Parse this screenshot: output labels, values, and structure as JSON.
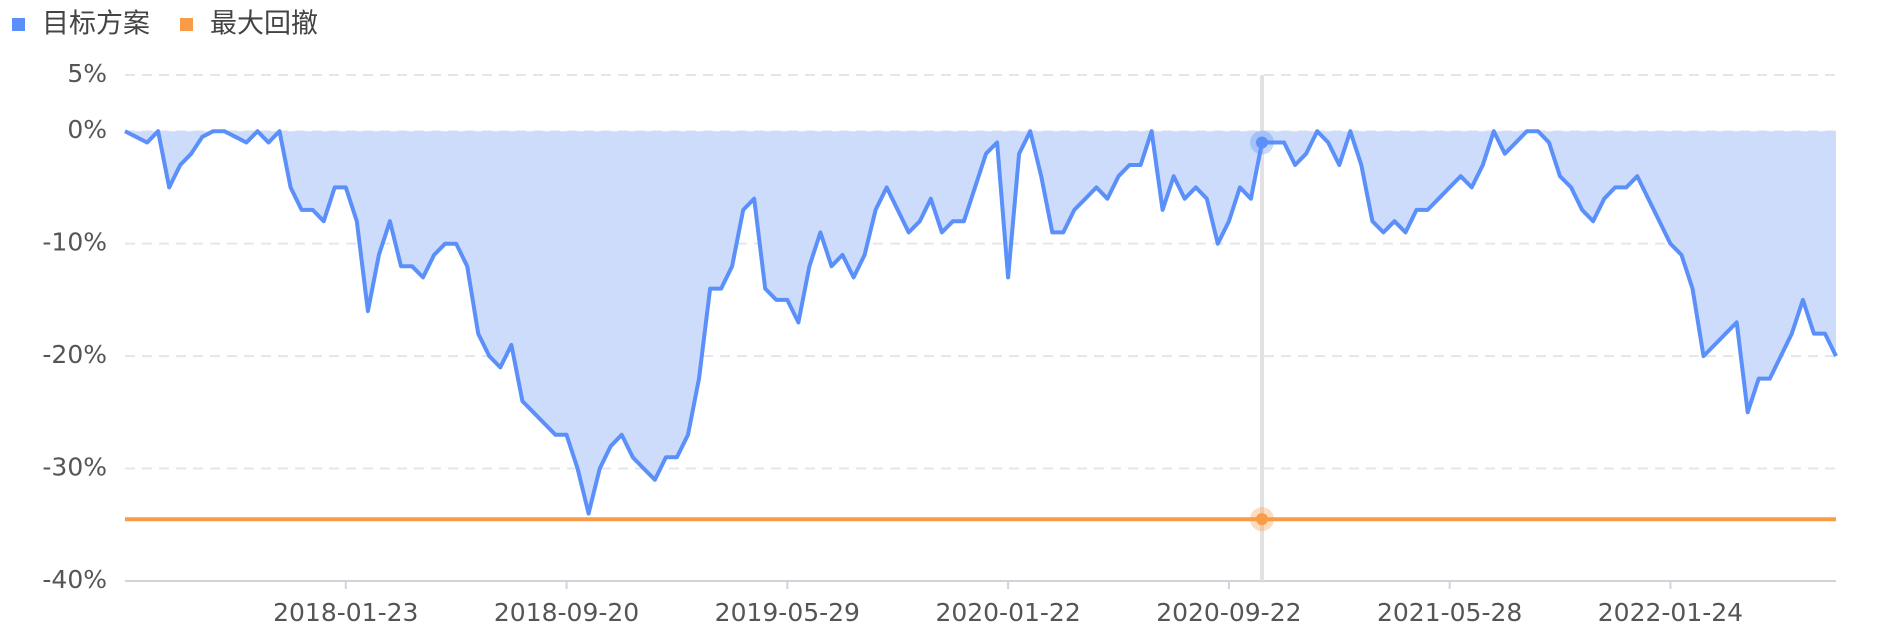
{
  "chart_data": {
    "type": "line",
    "categories": [
      null,
      null,
      null,
      null,
      null,
      null,
      null,
      null,
      null,
      null,
      null,
      null,
      null,
      null,
      null,
      null,
      null,
      null,
      null,
      null,
      "2018-01-23",
      null,
      null,
      null,
      null,
      null,
      null,
      null,
      null,
      null,
      null,
      null,
      null,
      null,
      null,
      null,
      null,
      null,
      null,
      null,
      "2018-09-20",
      null,
      null,
      null,
      null,
      null,
      null,
      null,
      null,
      null,
      null,
      null,
      null,
      null,
      null,
      null,
      null,
      null,
      null,
      null,
      "2019-05-29",
      null,
      null,
      null,
      null,
      null,
      null,
      null,
      null,
      null,
      null,
      null,
      null,
      null,
      null,
      null,
      null,
      null,
      null,
      null,
      "2020-01-22",
      null,
      null,
      null,
      null,
      null,
      null,
      null,
      null,
      null,
      null,
      null,
      null,
      null,
      null,
      null,
      null,
      null,
      null,
      null,
      "2020-09-22",
      null,
      null,
      null,
      null,
      null,
      null,
      null,
      null,
      null,
      null,
      null,
      null,
      null,
      null,
      null,
      null,
      null,
      null,
      null,
      "2021-05-28",
      null,
      null,
      null,
      null,
      null,
      null,
      null,
      null,
      null,
      null,
      null,
      null,
      null,
      null,
      null,
      null,
      null,
      null,
      null,
      "2022-01-24",
      null,
      null,
      null,
      null,
      null,
      null,
      null,
      null,
      null,
      null,
      null,
      null,
      null,
      null,
      null
    ],
    "series": [
      {
        "name": "目标方案",
        "color": "#5b8ff9",
        "area_color": "#cddcfb",
        "values": [
          0,
          -0.5,
          -1,
          0,
          -5,
          -3,
          -2,
          -0.5,
          0,
          0,
          -0.5,
          -1,
          0,
          -1,
          0,
          -5,
          -7,
          -7,
          -8,
          -5,
          -5,
          -8,
          -16,
          -11,
          -8,
          -12,
          -12,
          -13,
          -11,
          -10,
          -10,
          -12,
          -18,
          -20,
          -21,
          -19,
          -24,
          -25,
          -26,
          -27,
          -27,
          -30,
          -34,
          -30,
          -28,
          -27,
          -29,
          -30,
          -31,
          -29,
          -29,
          -27,
          -22,
          -14,
          -14,
          -12,
          -7,
          -6,
          -14,
          -15,
          -15,
          -17,
          -12,
          -9,
          -12,
          -11,
          -13,
          -11,
          -7,
          -5,
          -7,
          -9,
          -8,
          -6,
          -9,
          -8,
          -8,
          -5,
          -2,
          -1,
          -13,
          -2,
          0,
          -4,
          -9,
          -9,
          -7,
          -6,
          -5,
          -6,
          -4,
          -3,
          -3,
          0,
          -7,
          -4,
          -6,
          -5,
          -6,
          -10,
          -8,
          -5,
          -6,
          -1,
          -1,
          -1,
          -3,
          -2,
          0,
          -1,
          -3,
          0,
          -3,
          -8,
          -9,
          -8,
          -9,
          -7,
          -7,
          -6,
          -5,
          -4,
          -5,
          -3,
          0,
          -2,
          -1,
          0,
          0,
          -1,
          -4,
          -5,
          -7,
          -8,
          -6,
          -5,
          -5,
          -4,
          -6,
          -8,
          -10,
          -11,
          -14,
          -20,
          -19,
          -18,
          -17,
          -25,
          -22,
          -22,
          -20,
          -18,
          -15,
          -18,
          -18,
          -20
        ]
      },
      {
        "name": "最大回撤",
        "color": "#f89c48",
        "values": [
          -34.5,
          -34.5,
          -34.5,
          -34.5,
          -34.5,
          -34.5,
          -34.5,
          -34.5,
          -34.5,
          -34.5,
          -34.5,
          -34.5,
          -34.5,
          -34.5,
          -34.5,
          -34.5,
          -34.5,
          -34.5,
          -34.5,
          -34.5,
          -34.5,
          -34.5,
          -34.5,
          -34.5,
          -34.5,
          -34.5,
          -34.5,
          -34.5,
          -34.5,
          -34.5,
          -34.5,
          -34.5,
          -34.5,
          -34.5,
          -34.5,
          -34.5,
          -34.5,
          -34.5,
          -34.5,
          -34.5,
          -34.5,
          -34.5,
          -34.5,
          -34.5,
          -34.5,
          -34.5,
          -34.5,
          -34.5,
          -34.5,
          -34.5,
          -34.5,
          -34.5,
          -34.5,
          -34.5,
          -34.5,
          -34.5,
          -34.5,
          -34.5,
          -34.5,
          -34.5,
          -34.5,
          -34.5,
          -34.5,
          -34.5,
          -34.5,
          -34.5,
          -34.5,
          -34.5,
          -34.5,
          -34.5,
          -34.5,
          -34.5,
          -34.5,
          -34.5,
          -34.5,
          -34.5,
          -34.5,
          -34.5,
          -34.5,
          -34.5,
          -34.5,
          -34.5,
          -34.5,
          -34.5,
          -34.5,
          -34.5,
          -34.5,
          -34.5,
          -34.5,
          -34.5,
          -34.5,
          -34.5,
          -34.5,
          -34.5,
          -34.5,
          -34.5,
          -34.5,
          -34.5,
          -34.5,
          -34.5,
          -34.5,
          -34.5,
          -34.5,
          -34.5,
          -34.5,
          -34.5,
          -34.5,
          -34.5,
          -34.5,
          -34.5,
          -34.5,
          -34.5,
          -34.5,
          -34.5,
          -34.5,
          -34.5,
          -34.5,
          -34.5,
          -34.5,
          -34.5,
          -34.5,
          -34.5,
          -34.5,
          -34.5,
          -34.5,
          -34.5,
          -34.5,
          -34.5,
          -34.5,
          -34.5,
          -34.5,
          -34.5,
          -34.5,
          -34.5,
          -34.5,
          -34.5,
          -34.5,
          -34.5,
          -34.5,
          -34.5,
          -34.5,
          -34.5,
          -34.5,
          -34.5,
          -34.5,
          -34.5,
          -34.5,
          -34.5,
          -34.5,
          -34.5,
          -34.5,
          -34.5,
          -34.5,
          -34.5,
          -34.5,
          -34.5
        ]
      }
    ],
    "ylim": [
      -40,
      5
    ],
    "yticks": [
      {
        "value": -40,
        "label": "-40%"
      },
      {
        "value": -30,
        "label": "-30%"
      },
      {
        "value": -20,
        "label": "-20%"
      },
      {
        "value": -10,
        "label": "-10%"
      },
      {
        "value": 0,
        "label": "0%"
      },
      {
        "value": 5,
        "label": "5%"
      }
    ],
    "grid": true,
    "legend": "top-left"
  }
}
